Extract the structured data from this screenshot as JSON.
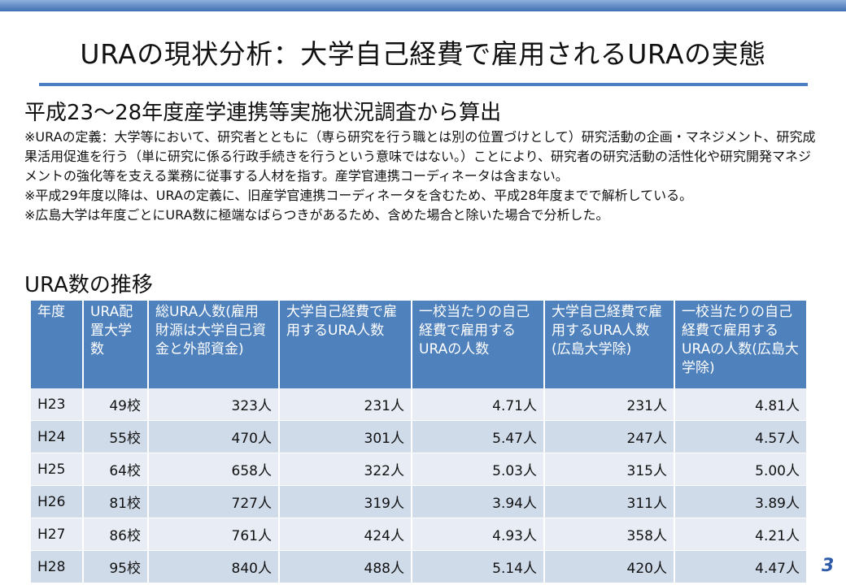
{
  "slide": {
    "title": "URAの現状分析：大学自己経費で雇用されるURAの実態",
    "page_number": "3"
  },
  "survey": {
    "heading": "平成23〜28年度産学連携等実施状況調査から算出",
    "notes": [
      "※URAの定義：大学等において、研究者とともに（専ら研究を行う職とは別の位置づけとして）研究活動の企画・マネジメント、研究成果活用促進を行う（単に研究に係る行政手続きを行うという意味ではない。）ことにより、研究者の研究活動の活性化や研究開発マネジメントの強化等を支える業務に従事する人材を指す。産学官連携コーディネータは含まない。",
      "※平成29年度以降は、URAの定義に、旧産学官連携コーディネータを含むため、平成28年度までで解析している。",
      "※広島大学は年度ごとにURA数に極端なばらつきがあるため、含めた場合と除いた場合で分析した。"
    ]
  },
  "trend": {
    "heading": "URA数の推移",
    "columns": [
      "年度",
      "URA配置大学数",
      "総URA人数(雇用財源は大学自己資金と外部資金)",
      "大学自己経費で雇用するURA人数",
      "一校当たりの自己経費で雇用するURAの人数",
      "大学自己経費で雇用するURA人数(広島大学除)",
      "一校当たりの自己経費で雇用するURAの人数(広島大学除)"
    ],
    "rows": [
      [
        "H23",
        "49校",
        "323人",
        "231人",
        "4.71人",
        "231人",
        "4.81人"
      ],
      [
        "H24",
        "55校",
        "470人",
        "301人",
        "5.47人",
        "247人",
        "4.57人"
      ],
      [
        "H25",
        "64校",
        "658人",
        "322人",
        "5.03人",
        "315人",
        "5.00人"
      ],
      [
        "H26",
        "81校",
        "727人",
        "319人",
        "3.94人",
        "311人",
        "3.89人"
      ],
      [
        "H27",
        "86校",
        "761人",
        "424人",
        "4.93人",
        "358人",
        "4.21人"
      ],
      [
        "H28",
        "95校",
        "840人",
        "488人",
        "5.14人",
        "420人",
        "4.47人"
      ]
    ]
  }
}
